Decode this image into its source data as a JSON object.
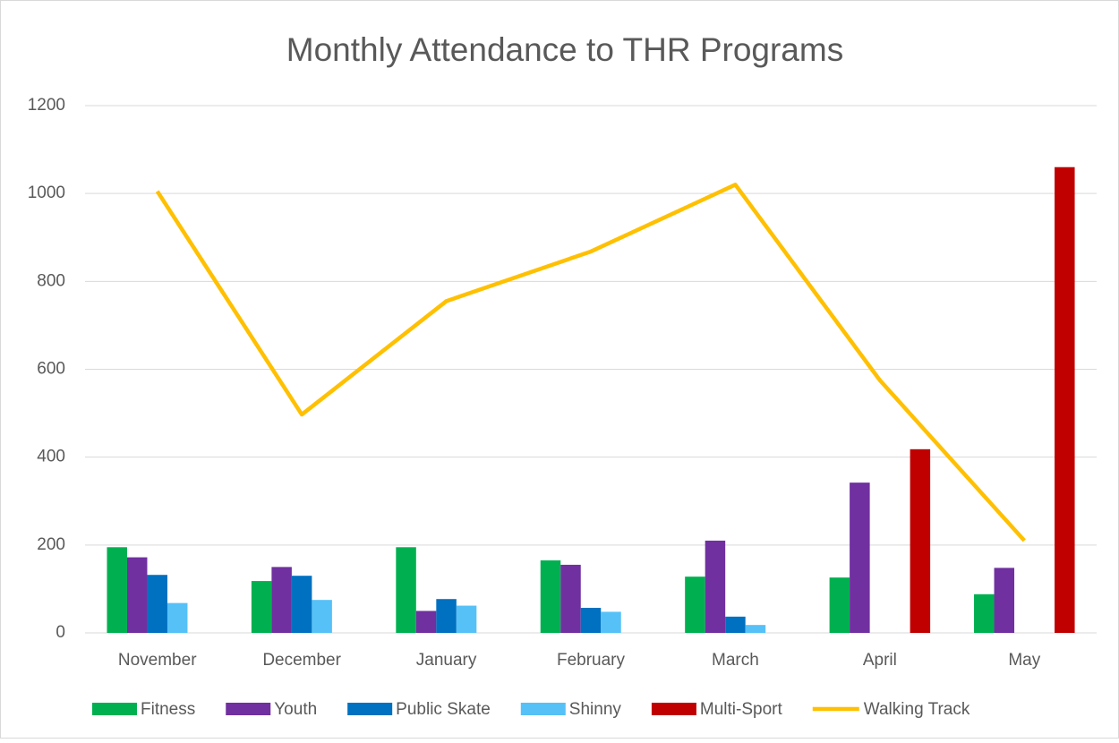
{
  "chart_data": {
    "type": "bar",
    "title": "Monthly Attendance to THR Programs",
    "categories": [
      "November",
      "December",
      "January",
      "February",
      "March",
      "April",
      "May"
    ],
    "series": [
      {
        "name": "Fitness",
        "color": "#00b050",
        "values": [
          195,
          118,
          195,
          165,
          128,
          126,
          88
        ]
      },
      {
        "name": "Youth",
        "color": "#7030a0",
        "values": [
          172,
          150,
          50,
          155,
          210,
          342,
          148
        ]
      },
      {
        "name": "Public Skate",
        "color": "#0070c0",
        "values": [
          132,
          130,
          77,
          57,
          37,
          null,
          null
        ]
      },
      {
        "name": "Shinny",
        "color": "#56c1f7",
        "values": [
          68,
          75,
          62,
          48,
          18,
          null,
          null
        ]
      },
      {
        "name": "Multi-Sport",
        "color": "#c00000",
        "values": [
          null,
          null,
          null,
          null,
          null,
          418,
          1060
        ]
      },
      {
        "name": "Walking Track",
        "color": "#ffc000",
        "type": "line",
        "values": [
          1005,
          497,
          755,
          868,
          1020,
          575,
          210
        ]
      }
    ],
    "ylim": [
      0,
      1200
    ],
    "yticks": [
      0,
      200,
      400,
      600,
      800,
      1000,
      1200
    ],
    "grid": true,
    "legend": "bottom"
  }
}
